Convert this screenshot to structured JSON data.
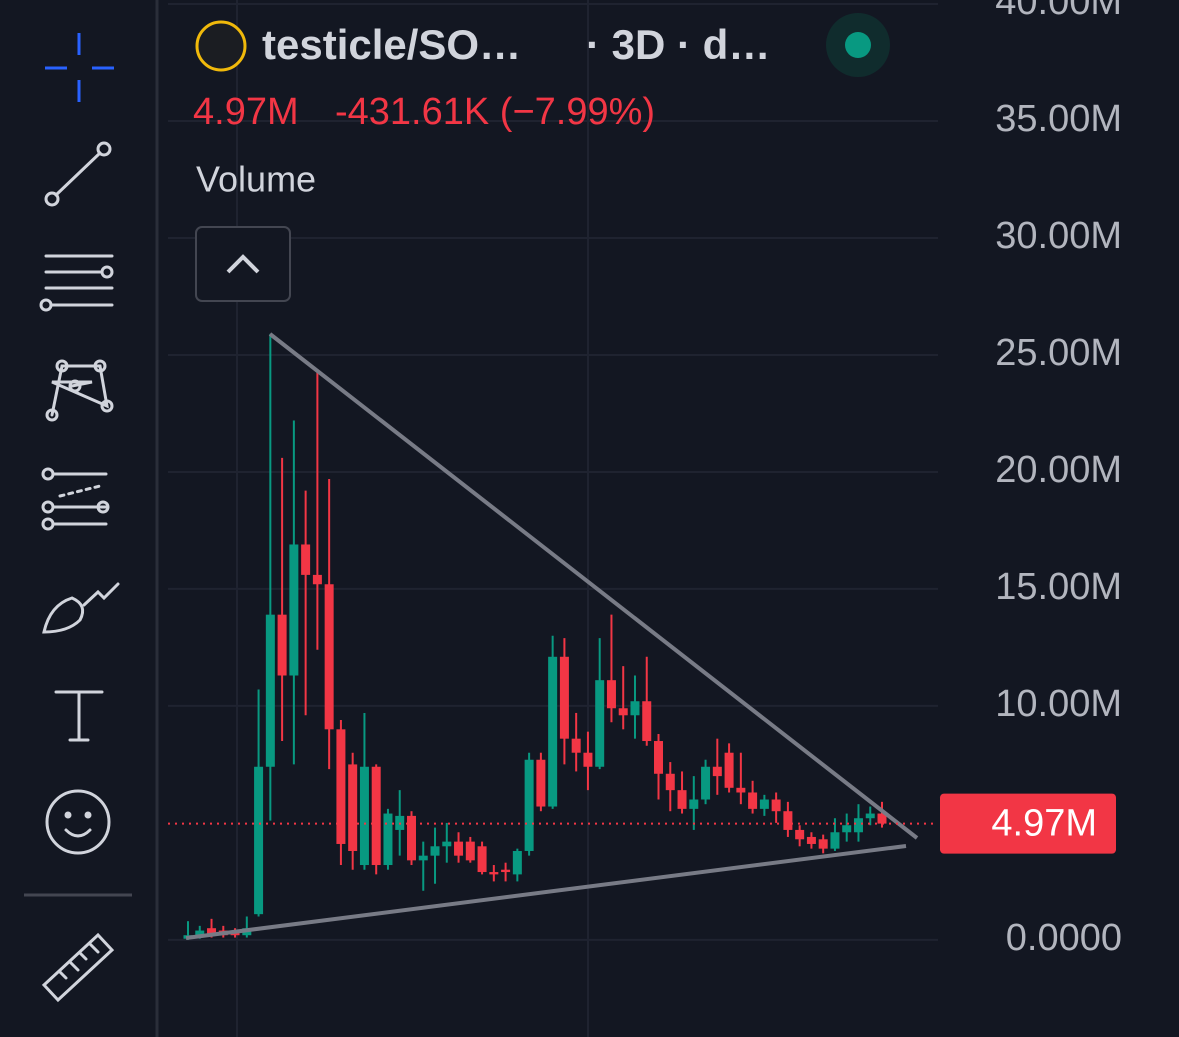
{
  "header": {
    "symbol": "testicle/SO…",
    "interval": "· 3D · d…",
    "last": "4.97M",
    "change": "-431.61K (−7.99%)",
    "indicator": "Volume"
  },
  "chart_data": {
    "type": "candlestick",
    "up_color": "#089981",
    "down_color": "#f23645",
    "open": [
      0.05,
      0.2,
      0.5,
      0.4,
      0.3,
      0.2,
      1.1,
      7.4,
      13.9,
      11.3,
      16.9,
      15.6,
      15.2,
      9.0,
      7.5,
      3.2,
      7.4,
      3.2,
      4.7,
      5.3,
      3.4,
      3.6,
      4.0,
      4.2,
      4.2,
      4.0,
      2.9,
      3.0,
      2.8,
      3.8,
      7.7,
      5.7,
      12.1,
      8.6,
      8.0,
      7.4,
      11.1,
      9.9,
      9.6,
      10.2,
      8.5,
      7.1,
      6.4,
      5.6,
      6.0,
      7.4,
      8.0,
      6.5,
      6.3,
      5.6,
      6.0,
      5.5,
      4.7,
      4.4,
      4.3,
      3.9,
      4.6,
      4.6,
      5.2,
      5.4
    ],
    "high": [
      0.8,
      0.6,
      0.9,
      0.6,
      0.5,
      1.0,
      10.7,
      25.9,
      20.6,
      22.2,
      19.2,
      24.4,
      19.7,
      9.4,
      8.0,
      9.7,
      7.5,
      5.6,
      6.4,
      5.5,
      4.2,
      4.8,
      5.0,
      4.6,
      4.4,
      4.2,
      3.2,
      3.3,
      3.9,
      8.0,
      8.0,
      13.0,
      12.9,
      9.7,
      8.9,
      12.9,
      13.9,
      11.7,
      11.3,
      12.1,
      8.8,
      7.6,
      7.2,
      7.0,
      7.7,
      8.6,
      8.4,
      8.0,
      6.8,
      6.2,
      6.3,
      5.9,
      4.9,
      4.6,
      4.5,
      5.2,
      5.4,
      5.8,
      5.7,
      5.9
    ],
    "low": [
      0,
      0.05,
      0.1,
      0.1,
      0.1,
      0.1,
      1.0,
      5.1,
      8.5,
      7.5,
      9.6,
      12.4,
      7.3,
      3.2,
      3.0,
      3.0,
      2.8,
      3.0,
      3.6,
      3.2,
      2.1,
      2.4,
      3.3,
      3.3,
      3.3,
      2.8,
      2.5,
      2.5,
      2.5,
      3.6,
      5.5,
      5.6,
      7.5,
      7.2,
      6.4,
      7.3,
      9.3,
      9.0,
      8.6,
      8.3,
      6.0,
      5.5,
      5.4,
      4.7,
      5.8,
      6.2,
      6.3,
      5.8,
      5.4,
      5.3,
      5.0,
      4.4,
      4.0,
      3.9,
      3.7,
      3.8,
      4.2,
      4.2,
      4.9,
      4.8
    ],
    "close": [
      0.2,
      0.4,
      0.2,
      0.2,
      0.2,
      0.5,
      7.4,
      13.9,
      11.3,
      16.9,
      15.6,
      15.2,
      9.0,
      4.1,
      3.8,
      7.4,
      3.2,
      5.4,
      5.3,
      3.4,
      3.6,
      4.0,
      4.2,
      3.6,
      3.4,
      2.9,
      2.8,
      2.9,
      3.8,
      7.7,
      5.7,
      12.1,
      8.6,
      8.0,
      7.4,
      11.1,
      9.9,
      9.6,
      10.2,
      8.5,
      7.1,
      6.4,
      5.6,
      6.0,
      7.4,
      7.0,
      6.5,
      6.3,
      5.6,
      6.0,
      5.5,
      4.7,
      4.3,
      4.1,
      3.9,
      4.6,
      4.9,
      5.2,
      5.4,
      4.97
    ],
    "ylim": [
      -4.15,
      40.17
    ],
    "yticks": [
      {
        "value": 0,
        "label": "0.0000"
      },
      {
        "value": 10,
        "label": "10.00M"
      },
      {
        "value": 15,
        "label": "15.00M"
      },
      {
        "value": 20,
        "label": "20.00M"
      },
      {
        "value": 25,
        "label": "25.00M"
      },
      {
        "value": 30,
        "label": "30.00M"
      },
      {
        "value": 35,
        "label": "35.00M"
      },
      {
        "value": 40,
        "label": "40.00M"
      }
    ],
    "grid": true,
    "last_price": 4.97,
    "last_price_label": "4.97M"
  }
}
